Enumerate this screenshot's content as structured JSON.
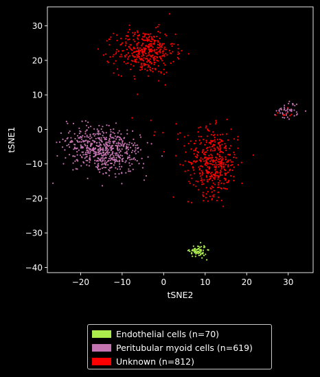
{
  "chart_data": {
    "type": "scatter",
    "title": "",
    "xlabel": "tSNE2",
    "ylabel": "tSNE1",
    "xlim": [
      -28,
      36
    ],
    "ylim": [
      -41.5,
      35.5
    ],
    "xticks": [
      -20,
      -10,
      0,
      10,
      20,
      30
    ],
    "yticks": [
      -40,
      -30,
      -20,
      -10,
      0,
      10,
      20,
      30
    ],
    "xtick_labels": [
      "−20",
      "−10",
      "0",
      "10",
      "20",
      "30"
    ],
    "ytick_labels": [
      "−40",
      "−30",
      "−20",
      "−10",
      "0",
      "10",
      "20",
      "30"
    ],
    "grid": false,
    "legend_position": "bottom-center",
    "background": "#000000",
    "series": [
      {
        "name": "Endothelial cells (n=70)",
        "color": "#acec4c",
        "count": 70,
        "clusters": [
          {
            "center": [
              8.3,
              -35.2
            ],
            "spread": [
              1.0,
              0.9
            ],
            "count": 70
          }
        ]
      },
      {
        "name": "Peritubular myoid cells (n=619)",
        "color": "#c474b0",
        "count": 619,
        "clusters": [
          {
            "center": [
              -14.5,
              -6.0
            ],
            "spread": [
              4.5,
              3.3
            ],
            "count": 575,
            "tilt_deg": -25
          },
          {
            "center": [
              30.0,
              5.5
            ],
            "spread": [
              1.4,
              1.3
            ],
            "count": 44
          }
        ]
      },
      {
        "name": "Unknown (n=812)",
        "color": "#ff0000",
        "count": 812,
        "clusters": [
          {
            "center": [
              -4.5,
              22.5
            ],
            "spread": [
              3.6,
              3.2
            ],
            "count": 380
          },
          {
            "center": [
              12.0,
              -9.5
            ],
            "spread": [
              3.0,
              4.8
            ],
            "count": 410
          },
          {
            "center": [
              0.0,
              -3.0
            ],
            "spread": [
              6.0,
              4.0
            ],
            "count": 14
          },
          {
            "center": [
              29.0,
              4.5
            ],
            "spread": [
              1.2,
              1.0
            ],
            "count": 8
          }
        ]
      }
    ]
  }
}
